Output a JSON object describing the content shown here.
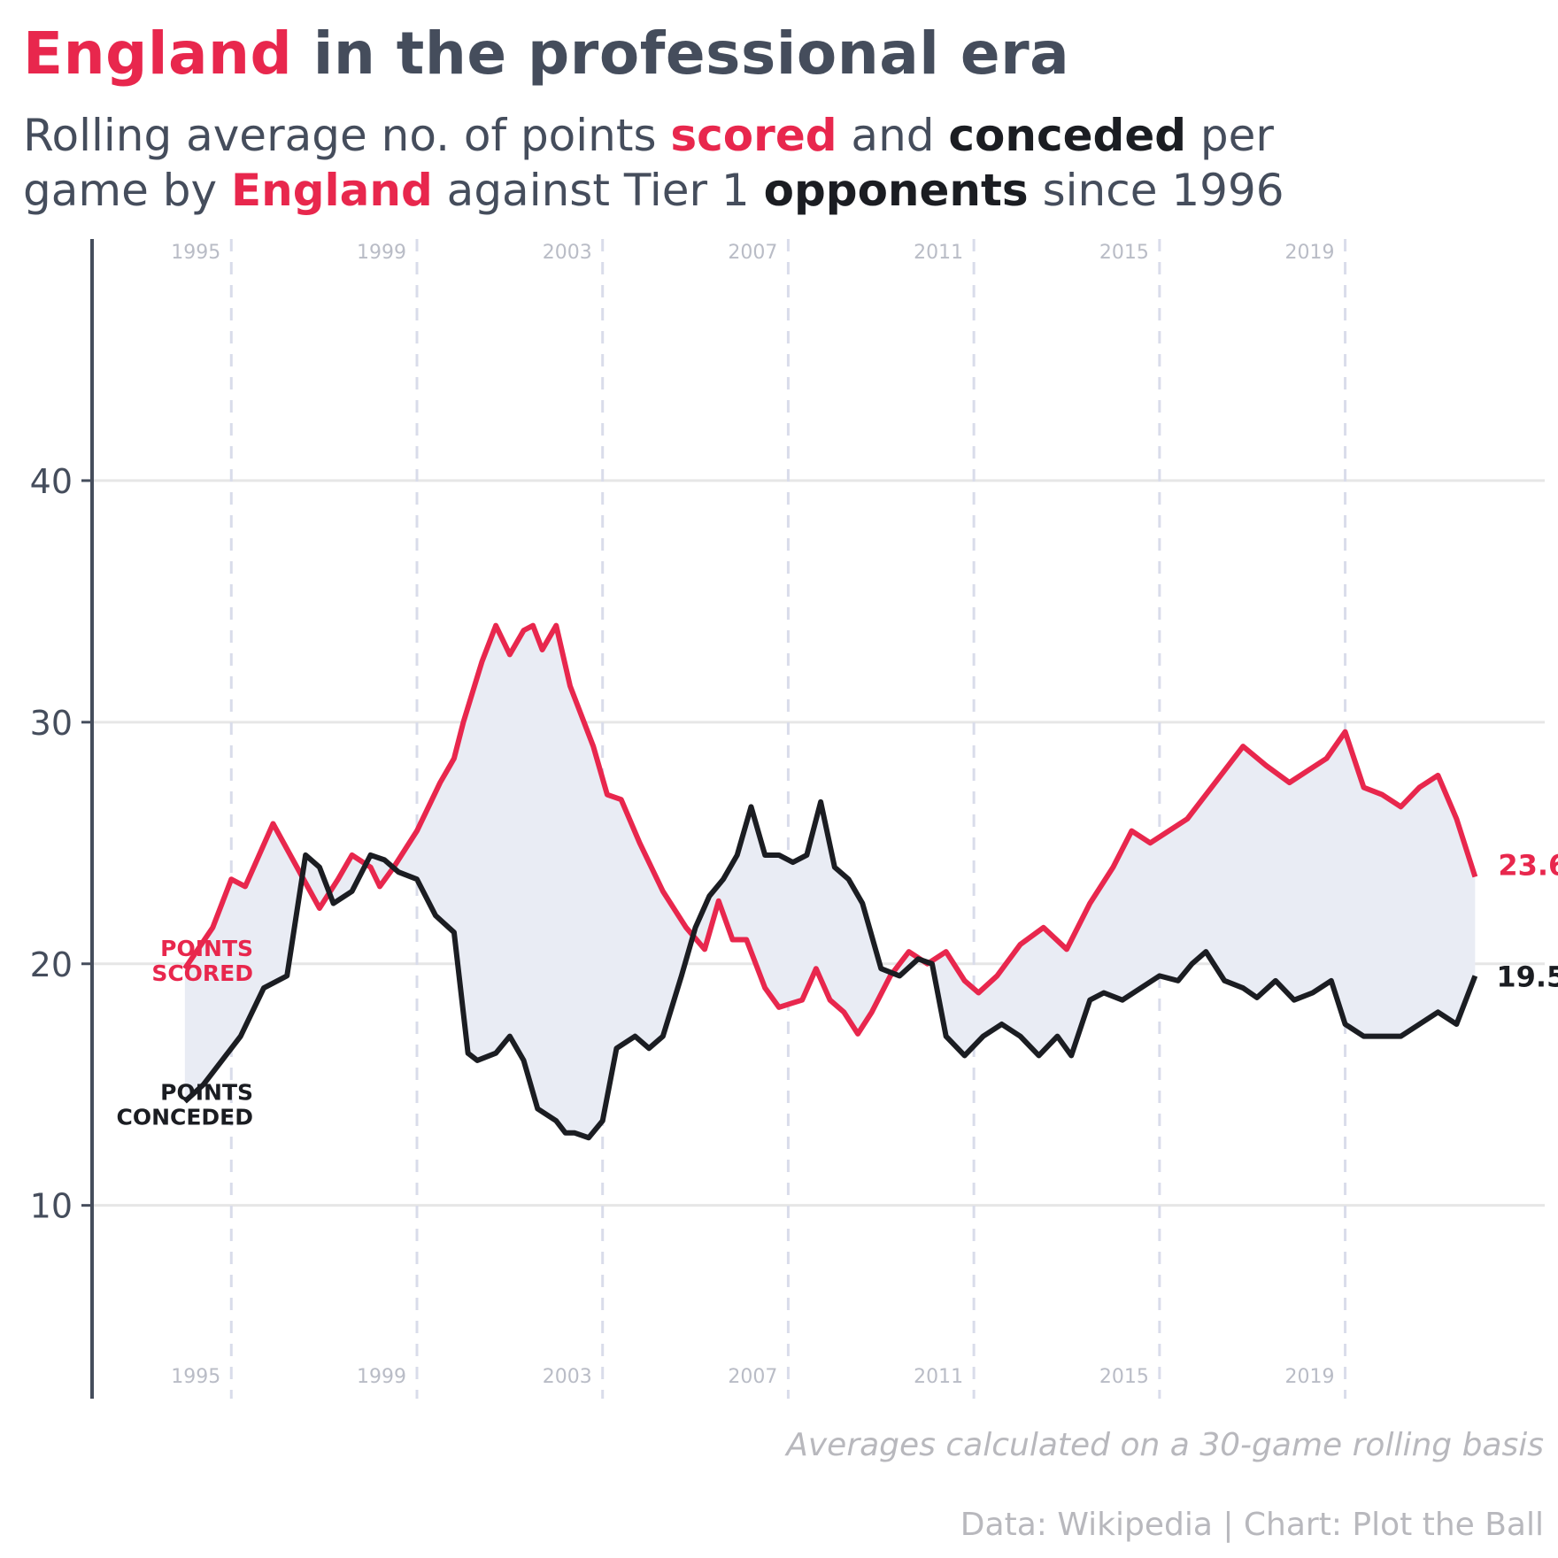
{
  "title": {
    "highlight": "England",
    "rest": " in the professional era"
  },
  "subtitle": {
    "line1": [
      "Rolling average no. of points ",
      "scored",
      " and ",
      "conceded",
      " per"
    ],
    "line2": [
      "game by ",
      "England",
      " against Tier 1 ",
      "opponents",
      " since 1996"
    ]
  },
  "colors": {
    "scored": "#e8274d",
    "conceded": "#1b1d22",
    "fill": "#e9ecf4",
    "grid": "#e6e6e6",
    "year_line": "#d9dcea",
    "axis": "#454d5c"
  },
  "footer": {
    "note": "Averages calculated on a 30-game rolling basis",
    "source": "Data: Wikipedia | Chart: Plot the Ball"
  },
  "chart_data": {
    "type": "line",
    "ylim": [
      2,
      50
    ],
    "yticks": [
      10,
      20,
      30,
      40
    ],
    "xlim": [
      1993.0,
      2024.3
    ],
    "year_markers": [
      1995,
      1999,
      2003,
      2007,
      2011,
      2015,
      2019
    ],
    "grid": true,
    "fill_between": true,
    "labels": {
      "scored": [
        "POINTS",
        "SCORED"
      ],
      "conceded": [
        "POINTS",
        "CONCEDED"
      ],
      "scored_end": "23.6",
      "conceded_end": "19.5"
    },
    "series": [
      {
        "name": "scored",
        "x": [
          1995.0,
          1995.6,
          1996.0,
          1996.3,
          1996.9,
          1997.7,
          1997.9,
          1998.3,
          1998.6,
          1999.0,
          1999.2,
          1999.5,
          2000.0,
          2000.5,
          2000.8,
          2001.0,
          2001.4,
          2001.7,
          2002.0,
          2002.3,
          2002.5,
          2002.7,
          2003.0,
          2003.3,
          2003.5,
          2003.8,
          2004.1,
          2004.4,
          2004.8,
          2005.3,
          2005.8,
          2006.2,
          2006.5,
          2006.8,
          2007.1,
          2007.5,
          2007.8,
          2008.3,
          2008.6,
          2008.9,
          2009.2,
          2009.5,
          2009.8,
          2010.2,
          2010.6,
          2011.0,
          2011.4,
          2011.8,
          2012.1,
          2012.5,
          2013.0,
          2013.5,
          2014.0,
          2014.5,
          2015.0,
          2015.4,
          2015.8,
          2016.2,
          2016.6,
          2017.0,
          2017.4,
          2017.8,
          2018.3,
          2018.8,
          2019.2,
          2019.6,
          2020.0,
          2020.4,
          2020.8,
          2021.2,
          2021.6,
          2022.0,
          2022.4,
          2022.8
        ],
        "values": [
          19.8,
          21.5,
          23.5,
          23.2,
          25.8,
          23.0,
          22.3,
          23.5,
          24.5,
          24.0,
          23.2,
          24.0,
          25.5,
          27.5,
          28.5,
          30.0,
          32.5,
          34.0,
          32.8,
          33.8,
          34.0,
          33.0,
          34.0,
          31.5,
          30.5,
          29.0,
          27.0,
          26.8,
          25.0,
          23.0,
          21.5,
          20.6,
          22.6,
          21.0,
          21.0,
          19.0,
          18.2,
          18.5,
          19.8,
          18.5,
          18.0,
          17.1,
          18.0,
          19.5,
          20.5,
          20.0,
          20.5,
          19.3,
          18.8,
          19.5,
          20.8,
          21.5,
          20.6,
          22.5,
          24.0,
          25.5,
          25.0,
          25.5,
          26.0,
          27.0,
          28.0,
          29.0,
          28.2,
          27.5,
          28.0,
          28.5,
          29.6,
          27.3,
          27.0,
          26.5,
          27.3,
          27.8,
          26.0,
          23.6
        ]
      },
      {
        "name": "conceded",
        "x": [
          1995.0,
          1995.4,
          1995.8,
          1996.2,
          1996.7,
          1997.2,
          1997.6,
          1997.9,
          1998.2,
          1998.6,
          1999.0,
          1999.3,
          1999.6,
          2000.0,
          2000.4,
          2000.8,
          2001.1,
          2001.3,
          2001.7,
          2002.0,
          2002.3,
          2002.6,
          2003.0,
          2003.2,
          2003.4,
          2003.7,
          2004.0,
          2004.3,
          2004.7,
          2005.0,
          2005.3,
          2005.7,
          2006.0,
          2006.3,
          2006.6,
          2006.9,
          2007.2,
          2007.5,
          2007.8,
          2008.1,
          2008.4,
          2008.7,
          2009.0,
          2009.3,
          2009.6,
          2010.0,
          2010.4,
          2010.8,
          2011.1,
          2011.4,
          2011.8,
          2012.2,
          2012.6,
          2013.0,
          2013.4,
          2013.8,
          2014.1,
          2014.5,
          2014.8,
          2015.2,
          2015.6,
          2016.0,
          2016.4,
          2016.7,
          2017.0,
          2017.4,
          2017.8,
          2018.1,
          2018.5,
          2018.9,
          2019.3,
          2019.7,
          2020.0,
          2020.4,
          2020.8,
          2021.2,
          2021.6,
          2022.0,
          2022.4,
          2022.8
        ],
        "values": [
          14.3,
          15.0,
          16.0,
          17.0,
          19.0,
          19.5,
          24.5,
          24.0,
          22.5,
          23.0,
          24.5,
          24.3,
          23.8,
          23.5,
          22.0,
          21.3,
          16.3,
          16.0,
          16.3,
          17.0,
          16.0,
          14.0,
          13.5,
          13.0,
          13.0,
          12.8,
          13.5,
          16.5,
          17.0,
          16.5,
          17.0,
          19.5,
          21.5,
          22.8,
          23.5,
          24.5,
          26.5,
          24.5,
          24.5,
          24.2,
          24.5,
          26.7,
          24.0,
          23.5,
          22.5,
          19.8,
          19.5,
          20.2,
          20.0,
          17.0,
          16.2,
          17.0,
          17.5,
          17.0,
          16.2,
          17.0,
          16.2,
          18.5,
          18.8,
          18.5,
          19.0,
          19.5,
          19.3,
          20.0,
          20.5,
          19.3,
          19.0,
          18.6,
          19.3,
          18.5,
          18.8,
          19.3,
          17.5,
          17.0,
          17.0,
          17.0,
          17.5,
          18.0,
          17.5,
          19.5
        ]
      }
    ]
  }
}
